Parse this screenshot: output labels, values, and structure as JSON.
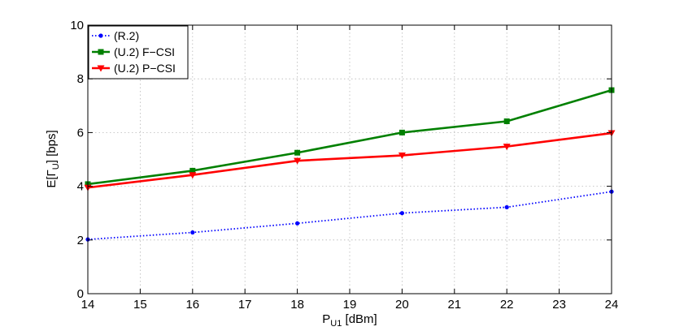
{
  "chart_data": {
    "type": "line",
    "xlabel": "P",
    "xlabel_sub": "U1",
    "xlabel_unit": " [dBm]",
    "ylabel": "E[Γ",
    "ylabel_sub": "U",
    "ylabel_unit": "] [bps]",
    "xlim": [
      14,
      24
    ],
    "ylim": [
      0,
      10
    ],
    "xticks": [
      14,
      15,
      16,
      17,
      18,
      19,
      20,
      21,
      22,
      23,
      24
    ],
    "yticks": [
      0,
      2,
      4,
      6,
      8,
      10
    ],
    "grid": true,
    "legend_position": "top-left",
    "x": [
      14,
      16,
      18,
      20,
      22,
      24
    ],
    "series": [
      {
        "name": "(R.2)",
        "values": [
          2.02,
          2.28,
          2.62,
          3.0,
          3.22,
          3.8
        ],
        "color": "#0000ff",
        "style": "dotted",
        "marker": "dot"
      },
      {
        "name": "(U.2) F−CSI",
        "values": [
          4.08,
          4.58,
          5.25,
          6.0,
          6.42,
          7.58
        ],
        "color": "#008000",
        "style": "solid",
        "marker": "square"
      },
      {
        "name": "(U.2) P−CSI",
        "values": [
          3.95,
          4.42,
          4.95,
          5.15,
          5.48,
          5.98
        ],
        "color": "#ff0000",
        "style": "solid",
        "marker": "triangle-down"
      }
    ]
  }
}
